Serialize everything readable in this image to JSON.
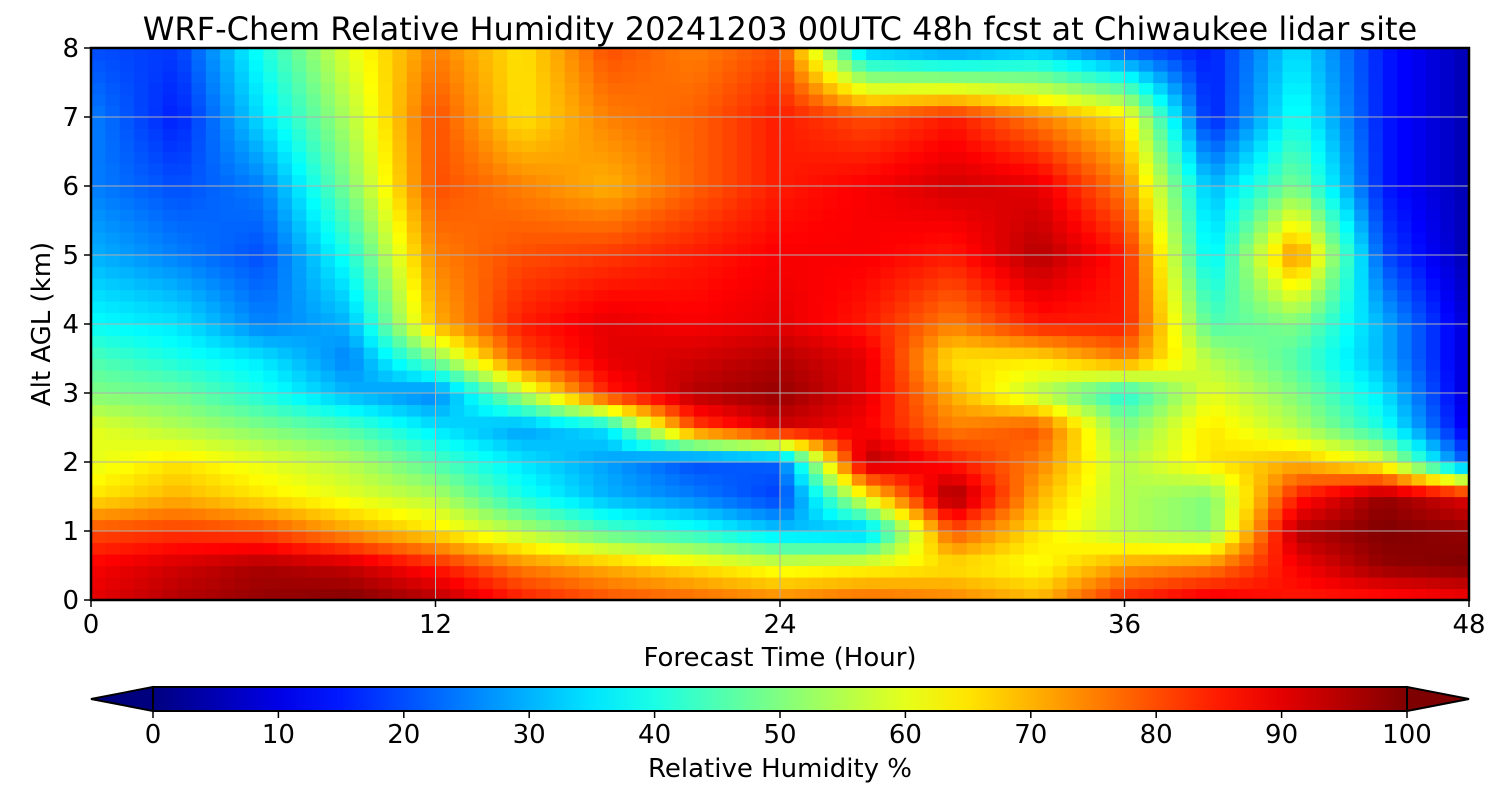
{
  "chart_data": {
    "type": "heatmap",
    "title": "WRF-Chem Relative Humidity 20241203 00UTC 48h fcst at Chiwaukee lidar site",
    "xlabel": "Forecast Time (Hour)",
    "ylabel": "Alt AGL (km)",
    "xlim": [
      0,
      48
    ],
    "ylim": [
      0,
      8
    ],
    "x_ticks": [
      "0",
      "12",
      "24",
      "36",
      "48"
    ],
    "y_ticks": [
      "0",
      "1",
      "2",
      "3",
      "4",
      "5",
      "6",
      "7",
      "8"
    ],
    "grid": true,
    "colorscale": "jet",
    "colorbar": {
      "label": "Relative Humidity %",
      "range": [
        0,
        100
      ],
      "ticks": [
        "0",
        "10",
        "20",
        "30",
        "40",
        "50",
        "60",
        "70",
        "80",
        "90",
        "100"
      ],
      "extend": "both",
      "orientation": "horizontal",
      "placement": "bottom"
    },
    "x": [
      0,
      3,
      6,
      9,
      12,
      15,
      18,
      21,
      24,
      27,
      30,
      33,
      36,
      39,
      42,
      45,
      48
    ],
    "y": [
      0,
      0.5,
      1,
      1.5,
      2,
      2.5,
      3,
      3.5,
      4,
      5,
      6,
      7,
      8
    ],
    "z": [
      [
        90,
        95,
        98,
        100,
        95,
        85,
        80,
        78,
        75,
        78,
        75,
        70,
        85,
        90,
        85,
        85,
        88
      ],
      [
        88,
        92,
        96,
        93,
        85,
        75,
        70,
        65,
        60,
        62,
        65,
        62,
        72,
        75,
        88,
        98,
        100
      ],
      [
        80,
        82,
        80,
        72,
        65,
        55,
        45,
        40,
        32,
        30,
        80,
        65,
        55,
        50,
        95,
        100,
        98
      ],
      [
        65,
        70,
        65,
        60,
        55,
        40,
        30,
        25,
        18,
        62,
        98,
        70,
        55,
        50,
        85,
        98,
        90
      ],
      [
        60,
        65,
        60,
        55,
        45,
        35,
        28,
        20,
        22,
        95,
        85,
        75,
        55,
        65,
        70,
        60,
        20
      ],
      [
        60,
        55,
        50,
        45,
        35,
        28,
        35,
        80,
        92,
        88,
        75,
        80,
        50,
        65,
        55,
        40,
        10
      ],
      [
        50,
        48,
        40,
        30,
        25,
        55,
        85,
        95,
        98,
        90,
        70,
        55,
        40,
        60,
        50,
        35,
        8
      ],
      [
        45,
        40,
        35,
        25,
        50,
        80,
        90,
        92,
        95,
        90,
        65,
        65,
        75,
        55,
        45,
        30,
        8
      ],
      [
        38,
        35,
        25,
        30,
        70,
        85,
        90,
        88,
        90,
        85,
        75,
        85,
        85,
        45,
        50,
        30,
        8
      ],
      [
        30,
        25,
        20,
        40,
        75,
        80,
        82,
        85,
        88,
        88,
        85,
        95,
        85,
        35,
        75,
        20,
        5
      ],
      [
        25,
        20,
        25,
        50,
        80,
        75,
        70,
        78,
        85,
        88,
        92,
        90,
        75,
        30,
        50,
        15,
        5
      ],
      [
        25,
        15,
        35,
        55,
        80,
        65,
        75,
        78,
        85,
        80,
        85,
        75,
        65,
        15,
        40,
        15,
        5
      ],
      [
        20,
        18,
        40,
        60,
        75,
        65,
        80,
        75,
        80,
        30,
        25,
        30,
        20,
        15,
        35,
        15,
        5
      ]
    ]
  }
}
